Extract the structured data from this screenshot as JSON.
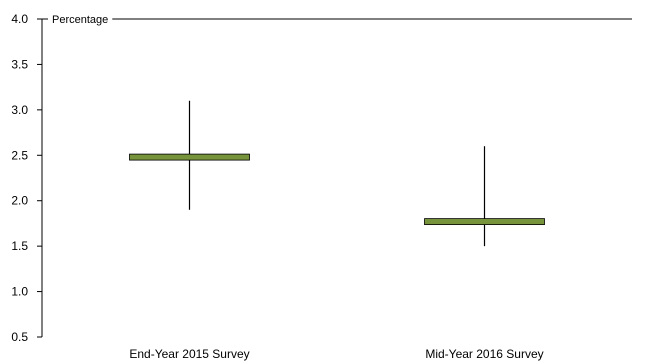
{
  "chart_data": {
    "type": "range",
    "y_unit_label": "Percentage",
    "ylim": [
      0.5,
      4.0
    ],
    "y_ticks": [
      "0.5",
      "1.0",
      "1.5",
      "2.0",
      "2.5",
      "3.0",
      "3.5",
      "4.0"
    ],
    "categories": [
      "End-Year 2015 Survey",
      "Mid-Year 2016 Survey"
    ],
    "points": [
      {
        "category": "End-Year 2015 Survey",
        "median": 2.48,
        "low": 1.9,
        "high": 3.1
      },
      {
        "category": "Mid-Year 2016 Survey",
        "median": 1.77,
        "low": 1.5,
        "high": 2.6
      }
    ],
    "colors": {
      "median_fill": "#77933c",
      "median_stroke": "#000000",
      "whisker": "#000000",
      "axis": "#000000"
    },
    "grid": false
  }
}
